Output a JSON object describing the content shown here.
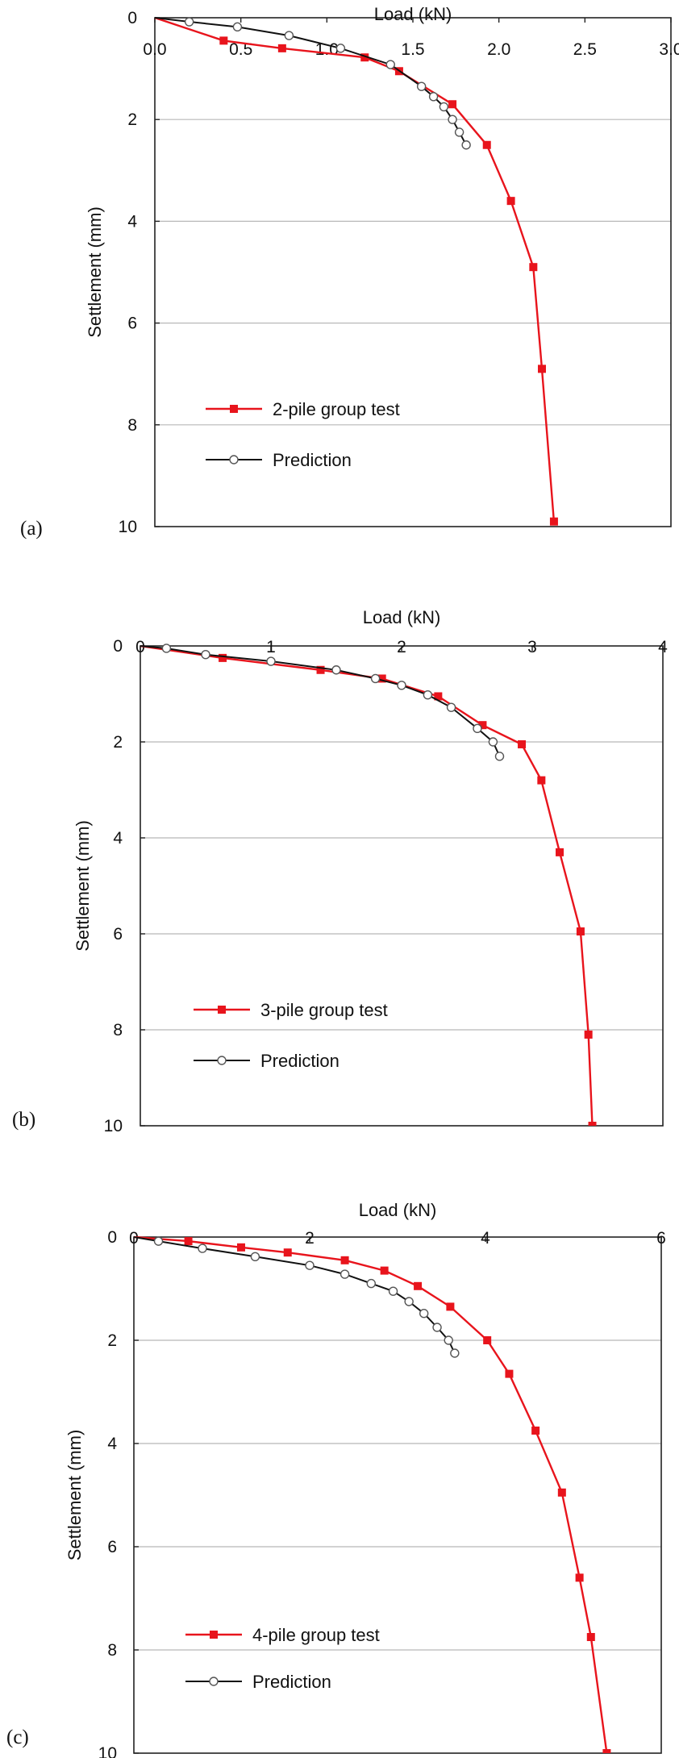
{
  "chart_data": [
    {
      "type": "line",
      "panel_label": "(a)",
      "xlabel": "Load (kN)",
      "ylabel": "Settlement (mm)",
      "xlim": [
        0,
        3.0
      ],
      "ylim": [
        0,
        10
      ],
      "y_inverted": true,
      "x_axis_position": "top",
      "xticks": [
        "0.0",
        "0.5",
        "1.0",
        "1.5",
        "2.0",
        "2.5",
        "3.0"
      ],
      "yticks": [
        "0",
        "2",
        "4",
        "6",
        "8",
        "10"
      ],
      "horizontal_grid": true,
      "legend_placement": "lower-left",
      "colors": {
        "test": "#e8141c",
        "prediction": "#111111"
      },
      "series": [
        {
          "name": "2-pile group test",
          "marker": "filled-square",
          "x": [
            0,
            0.4,
            0.74,
            1.22,
            1.42,
            1.73,
            1.93,
            2.07,
            2.2,
            2.25,
            2.32
          ],
          "y": [
            0,
            0.45,
            0.6,
            0.78,
            1.05,
            1.7,
            2.5,
            3.6,
            4.9,
            6.9,
            9.9
          ]
        },
        {
          "name": "Prediction",
          "marker": "open-circle",
          "x": [
            0,
            0.2,
            0.48,
            0.78,
            1.08,
            1.37,
            1.55,
            1.62,
            1.68,
            1.73,
            1.77,
            1.81
          ],
          "y": [
            0,
            0.08,
            0.18,
            0.35,
            0.6,
            0.92,
            1.35,
            1.55,
            1.75,
            2.0,
            2.25,
            2.5
          ]
        }
      ]
    },
    {
      "type": "line",
      "panel_label": "(b)",
      "xlabel": "Load (kN)",
      "ylabel": "Settlement (mm)",
      "xlim": [
        0,
        4
      ],
      "ylim": [
        0,
        10
      ],
      "y_inverted": true,
      "x_axis_position": "top",
      "xticks": [
        "0",
        "1",
        "2",
        "3",
        "4"
      ],
      "yticks": [
        "0",
        "2",
        "4",
        "6",
        "8",
        "10"
      ],
      "horizontal_grid": true,
      "legend_placement": "lower-left",
      "colors": {
        "test": "#e8141c",
        "prediction": "#111111"
      },
      "series": [
        {
          "name": "3-pile group test",
          "marker": "filled-square",
          "x": [
            0,
            0.63,
            1.38,
            1.85,
            2.28,
            2.62,
            2.92,
            3.07,
            3.21,
            3.37,
            3.43,
            3.46
          ],
          "y": [
            0,
            0.25,
            0.5,
            0.68,
            1.05,
            1.65,
            2.05,
            2.8,
            4.3,
            5.95,
            8.1,
            10.0
          ]
        },
        {
          "name": "Prediction",
          "marker": "open-circle",
          "x": [
            0,
            0.2,
            0.5,
            1.0,
            1.5,
            1.8,
            2.0,
            2.2,
            2.38,
            2.58,
            2.7,
            2.75
          ],
          "y": [
            0,
            0.05,
            0.18,
            0.32,
            0.5,
            0.68,
            0.82,
            1.02,
            1.28,
            1.72,
            2.0,
            2.3
          ]
        }
      ]
    },
    {
      "type": "line",
      "panel_label": "(c)",
      "xlabel": "Load (kN)",
      "ylabel": "Settlement (mm)",
      "xlim": [
        0,
        6
      ],
      "ylim": [
        0,
        10
      ],
      "y_inverted": true,
      "x_axis_position": "top",
      "xticks": [
        "0",
        "2",
        "4",
        "6"
      ],
      "yticks": [
        "0",
        "2",
        "4",
        "6",
        "8",
        "10"
      ],
      "horizontal_grid": true,
      "legend_placement": "lower-left",
      "colors": {
        "test": "#e8141c",
        "prediction": "#111111"
      },
      "series": [
        {
          "name": "4-pile group test",
          "marker": "filled-square",
          "x": [
            0,
            0.62,
            1.22,
            1.75,
            2.4,
            2.85,
            3.23,
            3.6,
            4.02,
            4.27,
            4.57,
            4.87,
            5.07,
            5.2,
            5.38
          ],
          "y": [
            0,
            0.08,
            0.2,
            0.3,
            0.45,
            0.65,
            0.95,
            1.35,
            2.0,
            2.65,
            3.75,
            4.95,
            6.6,
            7.75,
            10.0
          ]
        },
        {
          "name": "Prediction",
          "marker": "open-circle",
          "x": [
            0,
            0.28,
            0.78,
            1.38,
            2.0,
            2.4,
            2.7,
            2.95,
            3.13,
            3.3,
            3.45,
            3.58,
            3.65
          ],
          "y": [
            0,
            0.08,
            0.22,
            0.38,
            0.55,
            0.72,
            0.9,
            1.05,
            1.25,
            1.48,
            1.75,
            2.0,
            2.25
          ]
        }
      ]
    }
  ]
}
